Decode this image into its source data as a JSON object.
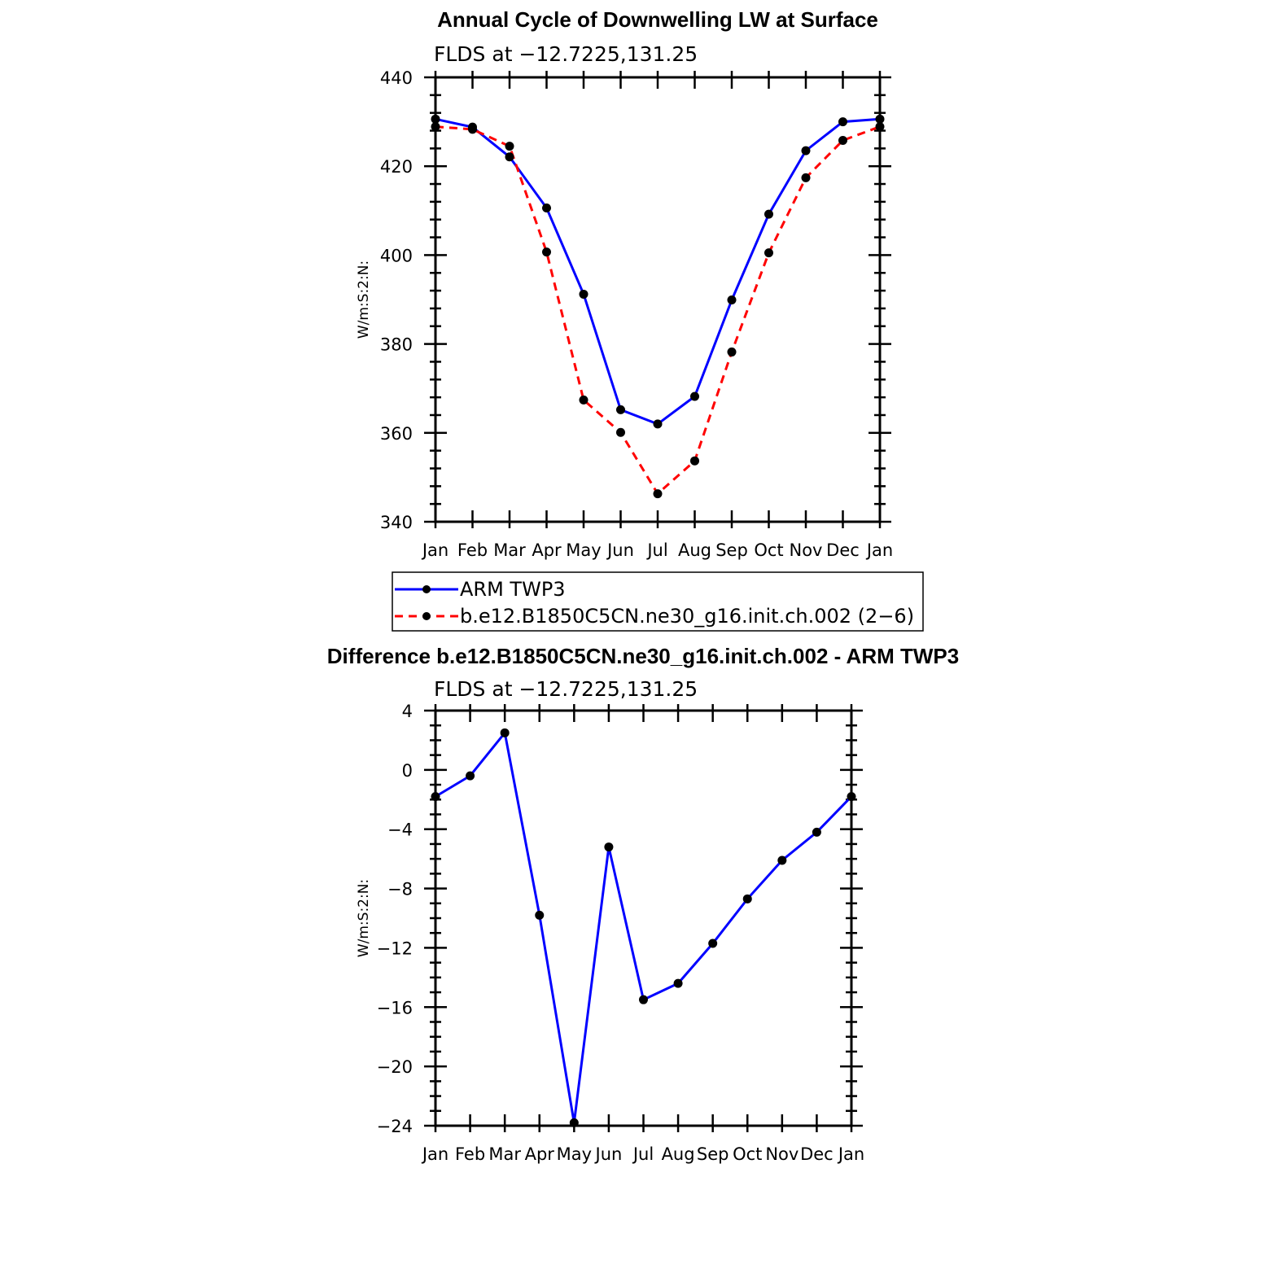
{
  "chart_data": [
    {
      "type": "line",
      "title": "Annual Cycle of Downwelling LW at Surface",
      "subtitle": "FLDS at −12.7225,131.25",
      "ylabel": "W/m:S:2:N:",
      "xlabel": "",
      "categories": [
        "Jan",
        "Feb",
        "Mar",
        "Apr",
        "May",
        "Jun",
        "Jul",
        "Aug",
        "Sep",
        "Oct",
        "Nov",
        "Dec",
        "Jan"
      ],
      "ylim": [
        340,
        440
      ],
      "yticks": [
        340,
        360,
        380,
        400,
        420,
        440
      ],
      "yticklabels": [
        "340",
        "360",
        "380",
        "400",
        "420",
        "440"
      ],
      "series": [
        {
          "name": "ARM TWP3",
          "color": "#0000ff",
          "dash": "solid",
          "values": [
            430.6,
            428.8,
            422.1,
            410.6,
            391.2,
            365.2,
            362.0,
            368.2,
            389.9,
            409.2,
            423.5,
            430.0,
            430.6
          ]
        },
        {
          "name": "b.e12.B1850C5CN.ne30_g16.init.ch.002 (2−6)",
          "color": "#ff0000",
          "dash": "dashed",
          "values": [
            428.9,
            428.3,
            424.5,
            400.7,
            367.4,
            360.1,
            346.3,
            353.7,
            378.2,
            400.5,
            417.4,
            425.8,
            428.9
          ]
        }
      ],
      "legend": "below"
    },
    {
      "type": "line",
      "title": "Difference b.e12.B1850C5CN.ne30_g16.init.ch.002 - ARM TWP3",
      "subtitle": "FLDS at −12.7225,131.25",
      "ylabel": "W/m:S:2:N:",
      "xlabel": "",
      "categories": [
        "Jan",
        "Feb",
        "Mar",
        "Apr",
        "May",
        "Jun",
        "Jul",
        "Aug",
        "Sep",
        "Oct",
        "Nov",
        "Dec",
        "Jan"
      ],
      "ylim": [
        -24,
        4
      ],
      "yticks": [
        4,
        0,
        -4,
        -8,
        -12,
        -16,
        -20,
        -24
      ],
      "yticklabels": [
        "4",
        "0",
        "−4",
        "−8",
        "−12",
        "−16",
        "−20",
        "−24"
      ],
      "series": [
        {
          "color": "#0000ff",
          "dash": "solid",
          "values": [
            -1.8,
            -0.4,
            2.5,
            -9.8,
            -23.8,
            -5.2,
            -15.5,
            -14.4,
            -11.7,
            -8.7,
            -6.1,
            -4.2,
            -1.8
          ]
        }
      ]
    }
  ]
}
